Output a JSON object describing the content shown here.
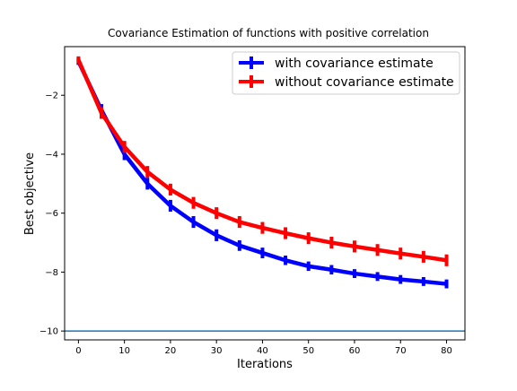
{
  "chart_data": {
    "type": "line",
    "title": "Covariance Estimation of functions with positive correlation",
    "xlabel": "Iterations",
    "ylabel": "Best objective",
    "xlim": [
      -3,
      84
    ],
    "ylim": [
      -10.3,
      -0.35
    ],
    "xticks": [
      0,
      10,
      20,
      30,
      40,
      50,
      60,
      70,
      80
    ],
    "yticks": [
      -10,
      -8,
      -6,
      -4,
      -2
    ],
    "grid": false,
    "legend_position": "top-right",
    "x": [
      0,
      5,
      10,
      15,
      20,
      25,
      30,
      35,
      40,
      45,
      50,
      55,
      60,
      65,
      70,
      75,
      80
    ],
    "series": [
      {
        "name": "with covariance estimate",
        "color": "#0000ff",
        "values": [
          -0.85,
          -2.5,
          -4.0,
          -5.0,
          -5.75,
          -6.3,
          -6.75,
          -7.1,
          -7.35,
          -7.6,
          -7.8,
          -7.92,
          -8.05,
          -8.15,
          -8.25,
          -8.32,
          -8.4
        ],
        "error": [
          0.12,
          0.2,
          0.2,
          0.2,
          0.2,
          0.2,
          0.2,
          0.18,
          0.18,
          0.16,
          0.16,
          0.16,
          0.15,
          0.15,
          0.15,
          0.15,
          0.15
        ]
      },
      {
        "name": "without covariance estimate",
        "color": "#ff0000",
        "values": [
          -0.8,
          -2.6,
          -3.75,
          -4.6,
          -5.2,
          -5.65,
          -6.0,
          -6.3,
          -6.5,
          -6.68,
          -6.85,
          -7.0,
          -7.13,
          -7.25,
          -7.37,
          -7.48,
          -7.6
        ],
        "error": [
          0.12,
          0.2,
          0.2,
          0.2,
          0.2,
          0.2,
          0.2,
          0.2,
          0.2,
          0.2,
          0.2,
          0.2,
          0.2,
          0.2,
          0.2,
          0.2,
          0.2
        ]
      }
    ],
    "reference_line": {
      "y": -10,
      "color": "#1f77b4"
    }
  }
}
